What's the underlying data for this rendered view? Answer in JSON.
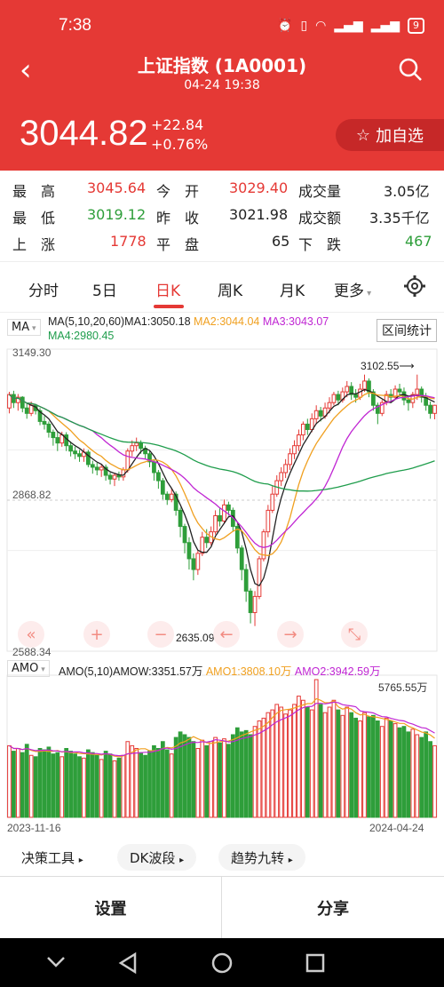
{
  "status": {
    "time": "7:38",
    "battery": "9"
  },
  "header": {
    "title": "上证指数 (1A0001)",
    "datetime": "04-24 19:38",
    "price": "3044.82",
    "change": "+22.84",
    "change_pct": "+0.76%",
    "add_label": "加自选",
    "add_icon": "star-icon"
  },
  "stats": [
    [
      {
        "k": "最　高"
      },
      {
        "v": "3045.64",
        "c": "red"
      },
      {
        "k": "今　开"
      },
      {
        "v": "3029.40",
        "c": "red"
      },
      {
        "k": "成交量"
      },
      {
        "v": "3.05亿",
        "c": "black"
      }
    ],
    [
      {
        "k": "最　低"
      },
      {
        "v": "3019.12",
        "c": "green"
      },
      {
        "k": "昨　收"
      },
      {
        "v": "3021.98",
        "c": "black"
      },
      {
        "k": "成交额"
      },
      {
        "v": "3.35千亿",
        "c": "black"
      }
    ],
    [
      {
        "k": "上　涨"
      },
      {
        "v": "1778",
        "c": "red"
      },
      {
        "k": "平　盘"
      },
      {
        "v": "65",
        "c": "black"
      },
      {
        "k": "下　跌"
      },
      {
        "v": "467",
        "c": "green"
      }
    ]
  ],
  "tabs": [
    "分时",
    "5日",
    "日K",
    "周K",
    "月K",
    "更多"
  ],
  "active_tab": "日K",
  "ma": {
    "select": "MA",
    "label": "MA(5,10,20,60)",
    "ma1": "MA1:3050.18",
    "ma2": "MA2:3044.04",
    "ma3": "MA3:3043.07",
    "ma4": "MA4:2980.45",
    "range_label": "区间统计"
  },
  "amo": {
    "select": "AMO",
    "label": "AMO(5,10)",
    "amow": "AMOW:3351.57万",
    "amo1": "AMO1:3808.10万",
    "amo2": "AMO2:3942.59万",
    "max": "5765.55万"
  },
  "tools": [
    "决策工具",
    "DK波段",
    "趋势九转"
  ],
  "bottom": {
    "settings": "设置",
    "share": "分享"
  },
  "colors": {
    "up": "#e53935",
    "down": "#2e9e3a",
    "ma1": "#222222",
    "ma2": "#f0a020",
    "ma3": "#c026d3",
    "ma4": "#1f9d4c"
  },
  "chart_data": {
    "type": "candlestick",
    "y_labels": [
      "3149.30",
      "2868.82",
      "2588.34"
    ],
    "ylim": [
      2588.34,
      3149.3
    ],
    "high_marker": "3102.55",
    "low_marker": "2635.09",
    "x_labels": [
      "2023-11-16",
      "2024-04-24"
    ],
    "candles": [
      [
        3040,
        3065,
        3030,
        3070
      ],
      [
        3065,
        3050,
        3040,
        3072
      ],
      [
        3050,
        3060,
        3035,
        3066
      ],
      [
        3060,
        3040,
        3032,
        3062
      ],
      [
        3040,
        3030,
        3020,
        3050
      ],
      [
        3030,
        3045,
        3025,
        3052
      ],
      [
        3045,
        3035,
        3028,
        3048
      ],
      [
        3035,
        3015,
        3008,
        3040
      ],
      [
        3015,
        3010,
        3000,
        3025
      ],
      [
        3010,
        2995,
        2985,
        3015
      ],
      [
        2995,
        2985,
        2970,
        3000
      ],
      [
        2985,
        2975,
        2960,
        2995
      ],
      [
        2975,
        2990,
        2968,
        2996
      ],
      [
        2990,
        2970,
        2960,
        2995
      ],
      [
        2970,
        2960,
        2950,
        2978
      ],
      [
        2960,
        2955,
        2945,
        2968
      ],
      [
        2955,
        2950,
        2940,
        2962
      ],
      [
        2950,
        2958,
        2940,
        2965
      ],
      [
        2958,
        2935,
        2930,
        2962
      ],
      [
        2935,
        2930,
        2918,
        2942
      ],
      [
        2930,
        2925,
        2915,
        2938
      ],
      [
        2925,
        2930,
        2912,
        2935
      ],
      [
        2930,
        2915,
        2905,
        2935
      ],
      [
        2915,
        2908,
        2898,
        2920
      ],
      [
        2908,
        2915,
        2895,
        2920
      ],
      [
        2915,
        2912,
        2905,
        2922
      ],
      [
        2912,
        2925,
        2905,
        2930
      ],
      [
        2925,
        2960,
        2920,
        2965
      ],
      [
        2960,
        2970,
        2950,
        2980
      ],
      [
        2970,
        2975,
        2960,
        2985
      ],
      [
        2975,
        2965,
        2955,
        2980
      ],
      [
        2965,
        2955,
        2945,
        2970
      ],
      [
        2955,
        2940,
        2930,
        2960
      ],
      [
        2940,
        2920,
        2905,
        2945
      ],
      [
        2920,
        2905,
        2890,
        2925
      ],
      [
        2905,
        2880,
        2870,
        2910
      ],
      [
        2880,
        2870,
        2860,
        2885
      ],
      [
        2870,
        2880,
        2865,
        2890
      ],
      [
        2880,
        2850,
        2840,
        2885
      ],
      [
        2850,
        2820,
        2800,
        2855
      ],
      [
        2820,
        2790,
        2770,
        2825
      ],
      [
        2790,
        2760,
        2740,
        2800
      ],
      [
        2760,
        2740,
        2720,
        2770
      ],
      [
        2740,
        2770,
        2730,
        2775
      ],
      [
        2770,
        2800,
        2765,
        2810
      ],
      [
        2800,
        2790,
        2780,
        2815
      ],
      [
        2790,
        2810,
        2785,
        2820
      ],
      [
        2810,
        2840,
        2805,
        2850
      ],
      [
        2840,
        2830,
        2820,
        2855
      ],
      [
        2830,
        2860,
        2825,
        2870
      ],
      [
        2860,
        2850,
        2840,
        2866
      ],
      [
        2850,
        2820,
        2810,
        2855
      ],
      [
        2820,
        2780,
        2770,
        2825
      ],
      [
        2780,
        2740,
        2720,
        2785
      ],
      [
        2740,
        2700,
        2680,
        2750
      ],
      [
        2700,
        2660,
        2640,
        2705
      ],
      [
        2660,
        2690,
        2635,
        2700
      ],
      [
        2690,
        2760,
        2685,
        2765
      ],
      [
        2760,
        2810,
        2755,
        2815
      ],
      [
        2810,
        2850,
        2800,
        2860
      ],
      [
        2850,
        2880,
        2845,
        2895
      ],
      [
        2880,
        2905,
        2875,
        2915
      ],
      [
        2905,
        2920,
        2895,
        2930
      ],
      [
        2920,
        2935,
        2910,
        2945
      ],
      [
        2935,
        2955,
        2925,
        2965
      ],
      [
        2955,
        2970,
        2945,
        2980
      ],
      [
        2970,
        2990,
        2960,
        3000
      ],
      [
        2990,
        3010,
        2980,
        3015
      ],
      [
        3010,
        3000,
        2990,
        3020
      ],
      [
        3000,
        3020,
        2995,
        3030
      ],
      [
        3020,
        3035,
        3010,
        3045
      ],
      [
        3035,
        3025,
        3015,
        3042
      ],
      [
        3025,
        3040,
        3020,
        3050
      ],
      [
        3040,
        3050,
        3030,
        3060
      ],
      [
        3050,
        3065,
        3045,
        3070
      ],
      [
        3065,
        3055,
        3045,
        3072
      ],
      [
        3055,
        3070,
        3050,
        3078
      ],
      [
        3070,
        3080,
        3060,
        3090
      ],
      [
        3080,
        3065,
        3055,
        3088
      ],
      [
        3065,
        3060,
        3050,
        3075
      ],
      [
        3060,
        3075,
        3055,
        3085
      ],
      [
        3075,
        3090,
        3070,
        3102
      ],
      [
        3090,
        3070,
        3060,
        3095
      ],
      [
        3070,
        3045,
        3035,
        3075
      ],
      [
        3045,
        3030,
        3010,
        3050
      ],
      [
        3030,
        3050,
        3025,
        3055
      ],
      [
        3050,
        3065,
        3045,
        3072
      ],
      [
        3065,
        3060,
        3050,
        3075
      ],
      [
        3060,
        3075,
        3055,
        3082
      ],
      [
        3075,
        3070,
        3060,
        3085
      ],
      [
        3070,
        3055,
        3045,
        3078
      ],
      [
        3055,
        3050,
        3035,
        3062
      ],
      [
        3050,
        3065,
        3040,
        3070
      ],
      [
        3065,
        3075,
        3055,
        3102
      ],
      [
        3075,
        3060,
        3050,
        3080
      ],
      [
        3060,
        3045,
        3035,
        3068
      ],
      [
        3045,
        3030,
        3020,
        3052
      ],
      [
        3030,
        3045,
        3019,
        3046
      ]
    ],
    "volumes": [
      0.52,
      0.48,
      0.5,
      0.47,
      0.53,
      0.45,
      0.44,
      0.5,
      0.49,
      0.51,
      0.46,
      0.47,
      0.44,
      0.5,
      0.48,
      0.46,
      0.44,
      0.43,
      0.49,
      0.47,
      0.45,
      0.42,
      0.48,
      0.46,
      0.41,
      0.43,
      0.45,
      0.55,
      0.52,
      0.5,
      0.47,
      0.45,
      0.48,
      0.52,
      0.5,
      0.55,
      0.49,
      0.46,
      0.58,
      0.62,
      0.6,
      0.58,
      0.55,
      0.5,
      0.56,
      0.52,
      0.55,
      0.58,
      0.54,
      0.57,
      0.53,
      0.6,
      0.65,
      0.62,
      0.63,
      0.6,
      0.66,
      0.7,
      0.72,
      0.76,
      0.78,
      0.82,
      0.8,
      0.75,
      0.78,
      0.82,
      0.88,
      0.85,
      0.8,
      0.78,
      1.0,
      0.82,
      0.76,
      0.8,
      0.85,
      0.78,
      0.74,
      0.8,
      0.76,
      0.72,
      0.7,
      0.76,
      0.73,
      0.74,
      0.7,
      0.66,
      0.72,
      0.7,
      0.68,
      0.65,
      0.66,
      0.62,
      0.64,
      0.6,
      0.58,
      0.62,
      0.55,
      0.52
    ]
  }
}
